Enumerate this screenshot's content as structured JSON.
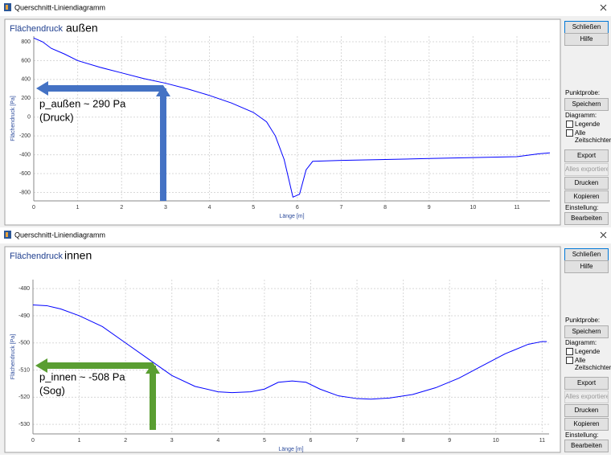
{
  "windows": [
    {
      "title": "Querschnitt-Liniendiagramm",
      "panel": {
        "top_buttons": [
          "Schließen",
          "Hilfe"
        ],
        "probe_label": "Punktprobe:",
        "probe_button": "Speichern",
        "diagram_label": "Diagramm:",
        "checkboxes": [
          "Legende",
          "Alle Zeitschichten"
        ],
        "buttons": [
          {
            "label": "Export",
            "enabled": true
          },
          {
            "label": "Alles exportieren",
            "enabled": false
          },
          {
            "label": "Drucken",
            "enabled": true
          },
          {
            "label": "Kopieren",
            "enabled": true
          }
        ],
        "settings_label": "Einstellung:",
        "settings_button": "Bearbeiten"
      }
    },
    {
      "title": "Querschnitt-Liniendiagramm",
      "panel": {
        "top_buttons": [
          "Schließen",
          "Hilfe"
        ],
        "probe_label": "Punktprobe:",
        "probe_button": "Speichern",
        "diagram_label": "Diagramm:",
        "checkboxes": [
          "Legende",
          "Alle Zeitschichten"
        ],
        "buttons": [
          {
            "label": "Export",
            "enabled": true
          },
          {
            "label": "Alles exportieren",
            "enabled": false
          },
          {
            "label": "Drucken",
            "enabled": true
          },
          {
            "label": "Kopieren",
            "enabled": true
          }
        ],
        "settings_label": "Einstellung:",
        "settings_button": "Bearbeiten"
      }
    }
  ],
  "chart_data": [
    {
      "type": "line",
      "title": "Flächendruck",
      "subtitle": "außen",
      "xlabel": "Länge [m]",
      "ylabel": "Flächendruck [Pa]",
      "x": [
        0,
        0.2,
        0.4,
        0.7,
        1,
        1.5,
        2,
        2.5,
        3,
        3.5,
        4,
        4.5,
        5,
        5.3,
        5.5,
        5.7,
        5.8,
        5.9,
        6.05,
        6.2,
        6.35,
        7,
        8,
        9,
        10,
        11,
        11.5,
        11.75
      ],
      "series": [
        {
          "color": "#0000ff",
          "values": [
            840,
            800,
            730,
            670,
            600,
            530,
            470,
            410,
            360,
            300,
            230,
            150,
            50,
            -50,
            -200,
            -450,
            -650,
            -850,
            -820,
            -560,
            -470,
            -460,
            -450,
            -440,
            -430,
            -420,
            -390,
            -380
          ]
        }
      ],
      "xlim": [
        0,
        11.75
      ],
      "ylim": [
        -890,
        860
      ],
      "xticks": [
        0,
        1,
        2,
        3,
        4,
        5,
        6,
        7,
        8,
        9,
        10,
        11
      ],
      "yticks": [
        -800,
        -600,
        -400,
        -200,
        0,
        200,
        400,
        600,
        800
      ],
      "grid": true,
      "annotation": [
        "p_außen ~ 290 Pa",
        "(Druck)"
      ],
      "annotation_color": "#4472c4"
    },
    {
      "type": "line",
      "title": "Flächendruck",
      "subtitle": "innen",
      "xlabel": "Länge [m]",
      "ylabel": "Flächendruck [Pa]",
      "x": [
        0,
        0.3,
        0.6,
        1,
        1.5,
        2,
        2.5,
        3,
        3.5,
        4,
        4.3,
        4.7,
        5,
        5.3,
        5.6,
        5.9,
        6.2,
        6.6,
        7,
        7.3,
        7.7,
        8.2,
        8.7,
        9.2,
        9.7,
        10.2,
        10.7,
        11,
        11.1
      ],
      "series": [
        {
          "color": "#0000ff",
          "values": [
            -486,
            -486.3,
            -487.5,
            -490,
            -494,
            -500,
            -506,
            -512,
            -516,
            -518,
            -518.3,
            -518,
            -517,
            -514.5,
            -514,
            -514.5,
            -517,
            -519.5,
            -520.5,
            -520.7,
            -520.3,
            -519,
            -516.5,
            -513,
            -508.5,
            -504,
            -500.5,
            -499.5,
            -499.5
          ]
        }
      ],
      "xlim": [
        0,
        11.15
      ],
      "ylim": [
        -533.5,
        -476.7
      ],
      "xticks": [
        0,
        1,
        2,
        3,
        4,
        5,
        6,
        7,
        8,
        9,
        10,
        11
      ],
      "yticks": [
        -530,
        -520,
        -510,
        -500,
        -490,
        -480
      ],
      "grid": true,
      "annotation": [
        "p_innen ~ -508 Pa",
        "(Sog)"
      ],
      "annotation_color": "#5a9e32"
    }
  ]
}
